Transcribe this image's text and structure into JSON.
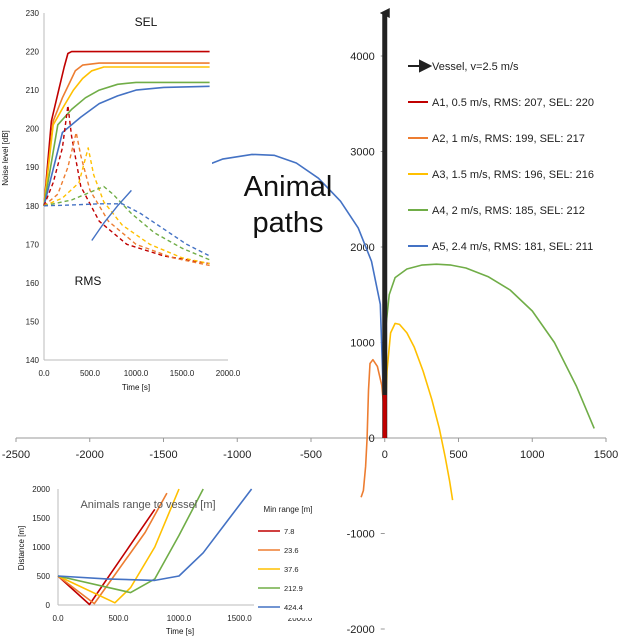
{
  "chart_data": [
    {
      "id": "main",
      "type": "line",
      "title": "",
      "xlabel": "",
      "ylabel": "",
      "xlim": [
        -2500,
        1500
      ],
      "ylim": [
        -2000,
        4000
      ],
      "x_ticks": [
        -2500,
        -2000,
        -1500,
        -1000,
        -500,
        0,
        500,
        1000,
        1500
      ],
      "y_ticks": [
        -2000,
        -1000,
        0,
        1000,
        2000,
        3000,
        4000
      ],
      "annotation": "Animal\npaths",
      "legend_position": "top-right",
      "vessel": {
        "label": "Vessel, v=2.5 m/s",
        "color": "#222222",
        "x": [
          0,
          0
        ],
        "y": [
          0,
          4450
        ]
      },
      "series": [
        {
          "name": "A1, 0.5 m/s, RMS: 207, SEL: 220",
          "color": "#c00000",
          "x": [
            0,
            0
          ],
          "y": [
            0,
            450
          ]
        },
        {
          "name": "A2, 1 m/s, RMS: 199, SEL: 217",
          "color": "#ed7d31",
          "x": [
            0,
            -5,
            -20,
            -50,
            -80,
            -100,
            -110,
            -120,
            -130,
            -145,
            -160
          ],
          "y": [
            0,
            300,
            550,
            750,
            820,
            780,
            500,
            0,
            -300,
            -550,
            -620
          ]
        },
        {
          "name": "A3, 1.5 m/s, RMS: 196, SEL: 216",
          "color": "#ffc000",
          "x": [
            0,
            15,
            40,
            70,
            100,
            150,
            200,
            260,
            320,
            370,
            410,
            440,
            460
          ],
          "y": [
            0,
            700,
            1100,
            1200,
            1190,
            1100,
            950,
            700,
            400,
            100,
            -200,
            -450,
            -650
          ]
        },
        {
          "name": "A4, 2 m/s, RMS: 185, SEL: 212",
          "color": "#70ad47",
          "x": [
            0,
            10,
            30,
            70,
            150,
            250,
            350,
            450,
            550,
            700,
            850,
            1000,
            1150,
            1300,
            1420
          ],
          "y": [
            0,
            1200,
            1500,
            1680,
            1770,
            1810,
            1820,
            1810,
            1780,
            1690,
            1550,
            1330,
            1000,
            540,
            100
          ]
        },
        {
          "name": "A5, 2.4 m/s, RMS: 181, SEL: 211",
          "color": "#4472c4",
          "x": [
            -2050,
            -1900,
            -1700,
            -1500,
            -1300,
            -1100,
            -900,
            -750,
            -600,
            -450,
            -300,
            -180,
            -90,
            -30,
            0
          ],
          "y": [
            1900,
            2150,
            2400,
            2620,
            2800,
            2920,
            2970,
            2960,
            2880,
            2720,
            2480,
            2200,
            1850,
            1400,
            0
          ]
        }
      ]
    },
    {
      "id": "noise",
      "type": "line",
      "title": "",
      "ylabel": "Noise level [dB]",
      "xlabel": "Time [s]",
      "xlim": [
        0,
        2000
      ],
      "ylim": [
        140,
        230
      ],
      "x_ticks": [
        "0.0",
        "500.0",
        "1000.0",
        "1500.0",
        "2000.0"
      ],
      "y_ticks": [
        140,
        150,
        160,
        170,
        180,
        190,
        200,
        210,
        220,
        230
      ],
      "annotations": [
        "SEL",
        "RMS"
      ],
      "sel": [
        {
          "color": "#c00000",
          "x": [
            0,
            80,
            160,
            220,
            260,
            300,
            1800
          ],
          "y": [
            180,
            202,
            210,
            216,
            219.5,
            220,
            220
          ]
        },
        {
          "color": "#ed7d31",
          "x": [
            0,
            100,
            200,
            280,
            340,
            420,
            600,
            1800
          ],
          "y": [
            180,
            202,
            208,
            212,
            215,
            216.5,
            217,
            217
          ]
        },
        {
          "color": "#ffc000",
          "x": [
            0,
            100,
            220,
            320,
            420,
            520,
            650,
            1800
          ],
          "y": [
            180,
            201,
            206,
            210,
            213,
            215,
            216,
            216
          ]
        },
        {
          "color": "#70ad47",
          "x": [
            0,
            150,
            300,
            450,
            600,
            800,
            1000,
            1800
          ],
          "y": [
            180,
            201,
            205,
            208,
            210,
            211.5,
            212,
            212
          ]
        },
        {
          "color": "#4472c4",
          "x": [
            0,
            200,
            400,
            600,
            800,
            1000,
            1300,
            1800
          ],
          "y": [
            180,
            199,
            203,
            206.5,
            208.5,
            210,
            210.7,
            211
          ]
        }
      ],
      "rms": [
        {
          "color": "#c00000",
          "dash": true,
          "x": [
            0,
            100,
            200,
            260,
            300,
            400,
            600,
            900,
            1300,
            1800
          ],
          "y": [
            180,
            186,
            195,
            206,
            198,
            185,
            176,
            170,
            167,
            165
          ]
        },
        {
          "color": "#ed7d31",
          "dash": true,
          "x": [
            0,
            150,
            260,
            350,
            400,
            500,
            700,
            1000,
            1400,
            1800
          ],
          "y": [
            180,
            183,
            190,
            199,
            193,
            184,
            176,
            170,
            166.5,
            164.5
          ]
        },
        {
          "color": "#ffc000",
          "dash": true,
          "x": [
            0,
            200,
            380,
            480,
            540,
            650,
            850,
            1150,
            1500,
            1800
          ],
          "y": [
            180,
            182,
            186,
            195,
            188,
            181,
            175,
            170,
            166.5,
            165
          ]
        },
        {
          "color": "#70ad47",
          "dash": true,
          "x": [
            0,
            300,
            500,
            650,
            750,
            950,
            1200,
            1500,
            1800
          ],
          "y": [
            180,
            181.5,
            183.5,
            185,
            183,
            178,
            173,
            169,
            166
          ]
        },
        {
          "color": "#4472c4",
          "dash": true,
          "x": [
            0,
            300,
            600,
            850,
            1050,
            1300,
            1550,
            1800
          ],
          "y": [
            180,
            180.2,
            180.5,
            180.5,
            178,
            174,
            170,
            167
          ]
        },
        {
          "color": "#4472c4",
          "dash": false,
          "x": [
            520,
            650,
            800,
            950
          ],
          "y": [
            171,
            175.5,
            180,
            184
          ]
        }
      ]
    },
    {
      "id": "range",
      "type": "line",
      "title": "Animals range to vessel [m]",
      "ylabel": "Distance [m]",
      "xlabel": "Time [s]",
      "xlim": [
        0,
        2000
      ],
      "ylim": [
        0,
        2000
      ],
      "x_ticks": [
        "0.0",
        "500.0",
        "1000.0",
        "1500.0",
        "2000.0"
      ],
      "y_ticks": [
        0,
        500,
        1000,
        1500,
        2000
      ],
      "legend_title": "Min range [m]",
      "series": [
        {
          "name": "7.8",
          "color": "#c00000",
          "x": [
            0,
            260,
            800
          ],
          "y": [
            500,
            8,
            1650
          ]
        },
        {
          "name": "23.6",
          "color": "#ed7d31",
          "x": [
            0,
            300,
            720,
            900
          ],
          "y": [
            500,
            24,
            1250,
            1930
          ]
        },
        {
          "name": "37.6",
          "color": "#ffc000",
          "x": [
            0,
            470,
            600,
            800,
            1000
          ],
          "y": [
            500,
            38,
            300,
            1000,
            2000
          ]
        },
        {
          "name": "212.9",
          "color": "#70ad47",
          "x": [
            0,
            600,
            800,
            1000,
            1200
          ],
          "y": [
            500,
            213,
            450,
            1200,
            2000
          ]
        },
        {
          "name": "424.4",
          "color": "#4472c4",
          "x": [
            0,
            400,
            800,
            1000,
            1200,
            1400,
            1600
          ],
          "y": [
            500,
            450,
            424,
            500,
            900,
            1450,
            2000
          ]
        }
      ]
    }
  ]
}
